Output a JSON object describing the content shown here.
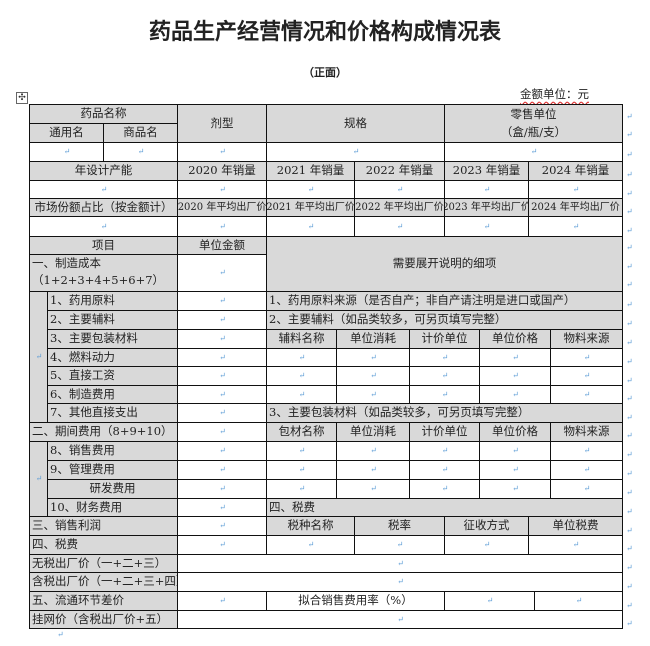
{
  "title": "药品生产经营情况和价格构成情况表",
  "subtitle": "（正面）",
  "amount_unit": "金额单位：元",
  "header": {
    "drug_name": "药品名称",
    "generic_name": "通用名",
    "trade_name": "商品名",
    "dosage_form": "剂型",
    "specification": "规格",
    "retail_unit_line1": "零售单位",
    "retail_unit_line2": "（盒/瓶/支）",
    "design_capacity": "年设计产能",
    "sales": [
      "2020 年销量",
      "2021 年销量",
      "2022 年销量",
      "2023 年销量",
      "2024 年销量"
    ],
    "market_share": "市场份额占比（按金额计）",
    "avg_price": [
      "2020 年平均出厂价",
      "2021 年平均出厂价",
      "2022 年平均出厂价",
      "2023 年平均出厂价",
      "2024 年平均出厂价"
    ]
  },
  "cost": {
    "item": "项目",
    "unit_amount": "单位金额",
    "details_title": "需要展开说明的细项",
    "manufacturing_line1": "一、制造成本",
    "manufacturing_line2": "（1+2+3+4+5+6+7）",
    "manufacturing_items": [
      "1、药用原料",
      "2、主要辅料",
      "3、主要包装材料",
      "4、燃料动力",
      "5、直接工资",
      "6、制造费用",
      "7、其他直接支出"
    ],
    "note1": "1、药用原料来源（是否自产；非自产请注明是进口或国产）",
    "note2": "2、主要辅料（如品类较多，可另页填写完整）",
    "excipient_headers": [
      "辅料名称",
      "单位消耗",
      "计价单位",
      "单位价格",
      "物料来源"
    ],
    "note3": "3、主要包装材料（如品类较多，可另页填写完整）",
    "period_expense": "二、期间费用（8+9+10）",
    "packaging_headers": [
      "包材名称",
      "单位消耗",
      "计价单位",
      "单位价格",
      "物料来源"
    ],
    "period_items": [
      "8、销售费用",
      "9、管理费用",
      "研发费用",
      "10、财务费用"
    ],
    "tax_section": "四、税费",
    "profit": "三、销售利润",
    "tax_headers": [
      "税种名称",
      "税率",
      "征收方式",
      "单位税费"
    ],
    "tax": "四、税费",
    "price_ex_tax": "无税出厂价（一+二+三）",
    "price_inc_tax": "含税出厂价（一+二+三+四）",
    "circulation_margin": "五、流通环节差价",
    "sales_expense_rate": "拟合销售费用率（%）",
    "listing_price": "挂网价（含税出厂价+五）"
  }
}
